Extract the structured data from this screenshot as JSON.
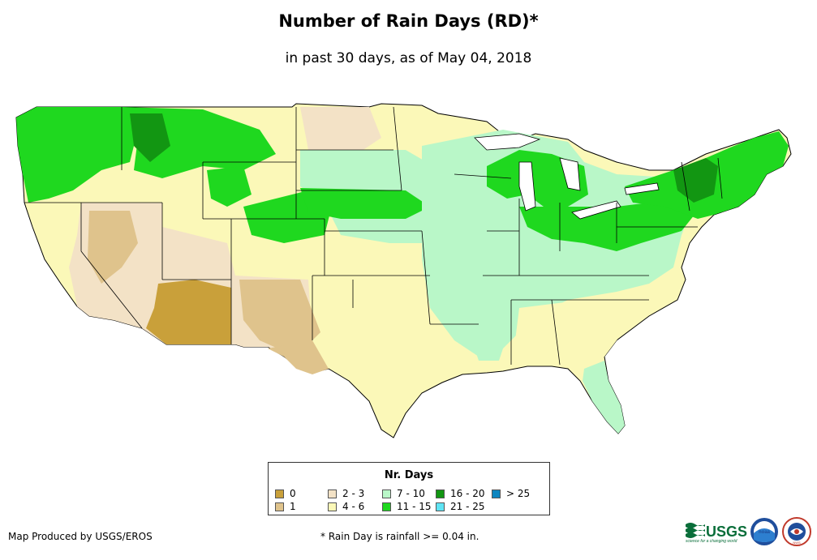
{
  "title": "Number of Rain Days (RD)*",
  "subtitle": "in past 30 days, as of May 04, 2018",
  "legend": {
    "title": "Nr. Days",
    "items": [
      {
        "label": "0",
        "color": "#c9a03a"
      },
      {
        "label": "1",
        "color": "#dfc38c"
      },
      {
        "label": "2 - 3",
        "color": "#f3e2c6"
      },
      {
        "label": "4 - 6",
        "color": "#fbf8b8"
      },
      {
        "label": "7 - 10",
        "color": "#b9f7c8"
      },
      {
        "label": "11 - 15",
        "color": "#1fd81f"
      },
      {
        "label": "16 - 20",
        "color": "#129612"
      },
      {
        "label": "21 - 25",
        "color": "#5fe4f4"
      },
      {
        "label": "> 25",
        "color": "#0e86c0"
      }
    ]
  },
  "footer": {
    "credit": "Map Produced by USGS/EROS",
    "note": "* Rain Day is rainfall >= 0.04 in."
  },
  "logos": {
    "usgs": "USGS",
    "usgs_tagline": "science for a changing world",
    "noaa": "noaa",
    "nws": "NWS"
  },
  "icons": [
    "usgs-logo",
    "noaa-logo",
    "nws-logo"
  ]
}
